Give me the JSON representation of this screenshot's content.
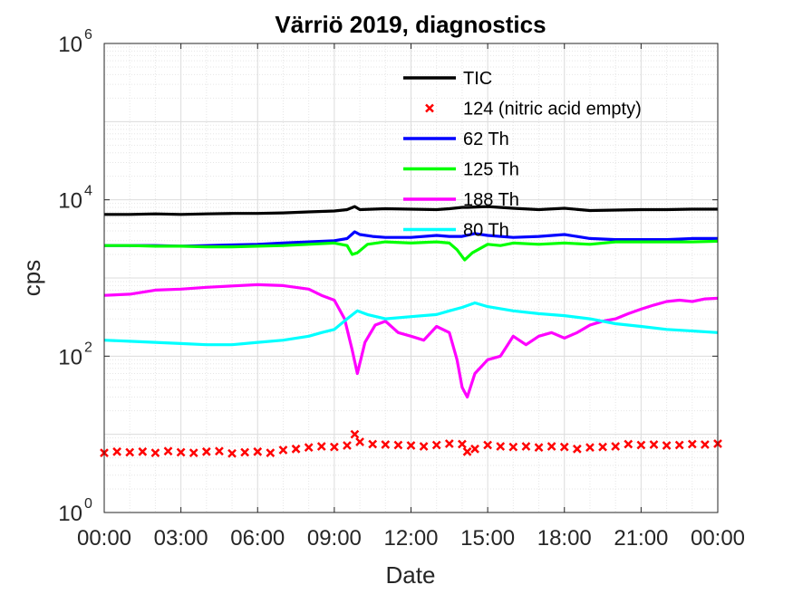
{
  "chart_data": {
    "type": "line",
    "title": "Värriö 2019, diagnostics",
    "xlabel": "Date",
    "ylabel": "cps",
    "x_unit": "hours",
    "xlim": [
      0,
      24
    ],
    "ylim": [
      1,
      1000000
    ],
    "yscale": "log",
    "grid": true,
    "minor_grid": true,
    "legend_position": "top-center",
    "x_ticks": [
      {
        "value": 0,
        "label": "00:00"
      },
      {
        "value": 3,
        "label": "03:00"
      },
      {
        "value": 6,
        "label": "06:00"
      },
      {
        "value": 9,
        "label": "09:00"
      },
      {
        "value": 12,
        "label": "12:00"
      },
      {
        "value": 15,
        "label": "15:00"
      },
      {
        "value": 18,
        "label": "18:00"
      },
      {
        "value": 21,
        "label": "21:00"
      },
      {
        "value": 24,
        "label": "00:00"
      }
    ],
    "y_ticks": [
      {
        "value": 1,
        "base": "10",
        "exp": "0"
      },
      {
        "value": 100,
        "base": "10",
        "exp": "2"
      },
      {
        "value": 10000,
        "base": "10",
        "exp": "4"
      },
      {
        "value": 1000000,
        "base": "10",
        "exp": "6"
      }
    ],
    "series": [
      {
        "name": "TIC",
        "color": "#000000",
        "style": "line",
        "x": [
          0,
          1,
          2,
          3,
          4,
          5,
          6,
          7,
          8,
          9,
          9.5,
          9.8,
          10,
          10.5,
          11,
          12,
          13,
          13.5,
          14,
          14.2,
          15,
          16,
          17,
          18,
          19,
          20,
          21,
          22,
          23,
          24
        ],
        "y": [
          6500,
          6500,
          6600,
          6500,
          6600,
          6700,
          6700,
          6800,
          7000,
          7200,
          7500,
          8200,
          7500,
          7600,
          7700,
          7600,
          7500,
          7700,
          8000,
          8000,
          8200,
          7800,
          7500,
          7800,
          7300,
          7400,
          7500,
          7500,
          7600,
          7600
        ]
      },
      {
        "name": "124 (nitric acid empty)",
        "color": "#ff0000",
        "style": "marker",
        "x": [
          0,
          0.5,
          1,
          1.5,
          2,
          2.5,
          3,
          3.5,
          4,
          4.5,
          5,
          5.5,
          6,
          6.5,
          7,
          7.5,
          8,
          8.5,
          9,
          9.5,
          9.8,
          10,
          10.5,
          11,
          11.5,
          12,
          12.5,
          13,
          13.5,
          14,
          14.2,
          14.5,
          15,
          15.5,
          16,
          16.5,
          17,
          17.5,
          18,
          18.5,
          19,
          19.5,
          20,
          20.5,
          21,
          21.5,
          22,
          22.5,
          23,
          23.5,
          24
        ],
        "y": [
          5.8,
          6.0,
          5.9,
          6.0,
          5.8,
          6.1,
          5.9,
          5.8,
          6.0,
          6.1,
          5.7,
          5.9,
          6.0,
          5.8,
          6.3,
          6.5,
          6.8,
          7.0,
          6.9,
          7.2,
          10,
          8.0,
          7.5,
          7.4,
          7.3,
          7.2,
          7.0,
          7.3,
          7.6,
          7.5,
          6.0,
          6.5,
          7.3,
          7.0,
          6.9,
          7.0,
          6.8,
          7.0,
          6.9,
          6.5,
          6.8,
          6.9,
          7.0,
          7.5,
          7.3,
          7.4,
          7.2,
          7.3,
          7.5,
          7.4,
          7.6
        ]
      },
      {
        "name": "62 Th",
        "color": "#0000ff",
        "style": "line",
        "x": [
          0,
          1,
          2,
          3,
          4,
          5,
          6,
          7,
          8,
          9,
          9.5,
          9.8,
          10,
          10.5,
          11,
          12,
          13,
          13.5,
          14,
          14.5,
          15,
          16,
          17,
          18,
          19,
          20,
          21,
          22,
          23,
          24
        ],
        "y": [
          2600,
          2600,
          2600,
          2550,
          2600,
          2650,
          2700,
          2800,
          2900,
          3000,
          3200,
          3900,
          3600,
          3400,
          3300,
          3300,
          3500,
          3400,
          3400,
          3700,
          3500,
          3300,
          3400,
          3600,
          3200,
          3100,
          3100,
          3100,
          3200,
          3200
        ]
      },
      {
        "name": "125 Th",
        "color": "#00ff00",
        "style": "line",
        "x": [
          0,
          1,
          2,
          3,
          4,
          5,
          6,
          7,
          8,
          9,
          9.5,
          9.7,
          9.9,
          10.3,
          11,
          12,
          13,
          13.5,
          13.8,
          14.1,
          14.4,
          15,
          15.5,
          16,
          17,
          18,
          19,
          20,
          21,
          22,
          23,
          24
        ],
        "y": [
          2600,
          2600,
          2550,
          2550,
          2500,
          2500,
          2550,
          2600,
          2700,
          2800,
          2600,
          2000,
          2100,
          2700,
          2900,
          2800,
          2900,
          2800,
          2300,
          1700,
          2100,
          2700,
          2600,
          2800,
          2700,
          2800,
          2700,
          2900,
          2900,
          2900,
          2900,
          2950
        ]
      },
      {
        "name": "188 Th",
        "color": "#ff00ff",
        "style": "line",
        "x": [
          0,
          1,
          2,
          3,
          4,
          5,
          6,
          7,
          8,
          8.5,
          9,
          9.4,
          9.7,
          9.9,
          10.2,
          10.6,
          11,
          11.5,
          12,
          12.5,
          13,
          13.5,
          13.8,
          14.0,
          14.2,
          14.5,
          15,
          15.5,
          16,
          16.5,
          17,
          17.5,
          18,
          18.5,
          19,
          19.5,
          20,
          20.5,
          21,
          21.5,
          22,
          22.5,
          23,
          23.5,
          24
        ],
        "y": [
          600,
          620,
          700,
          720,
          760,
          790,
          820,
          800,
          720,
          600,
          520,
          300,
          120,
          60,
          150,
          250,
          280,
          200,
          180,
          160,
          240,
          200,
          90,
          40,
          30,
          60,
          90,
          100,
          180,
          140,
          180,
          200,
          170,
          200,
          250,
          280,
          300,
          350,
          400,
          450,
          500,
          520,
          500,
          540,
          550
        ]
      },
      {
        "name": "80 Th",
        "color": "#00ffff",
        "style": "line",
        "x": [
          0,
          1,
          2,
          3,
          4,
          5,
          6,
          7,
          8,
          8.5,
          9,
          9.5,
          9.9,
          10.3,
          11,
          12,
          13,
          13.5,
          14,
          14.5,
          15,
          16,
          17,
          18,
          19,
          20,
          21,
          22,
          23,
          24
        ],
        "y": [
          160,
          155,
          150,
          145,
          140,
          140,
          150,
          160,
          180,
          200,
          220,
          300,
          380,
          340,
          300,
          320,
          340,
          380,
          420,
          480,
          430,
          380,
          350,
          330,
          300,
          260,
          240,
          220,
          210,
          200
        ]
      }
    ]
  }
}
